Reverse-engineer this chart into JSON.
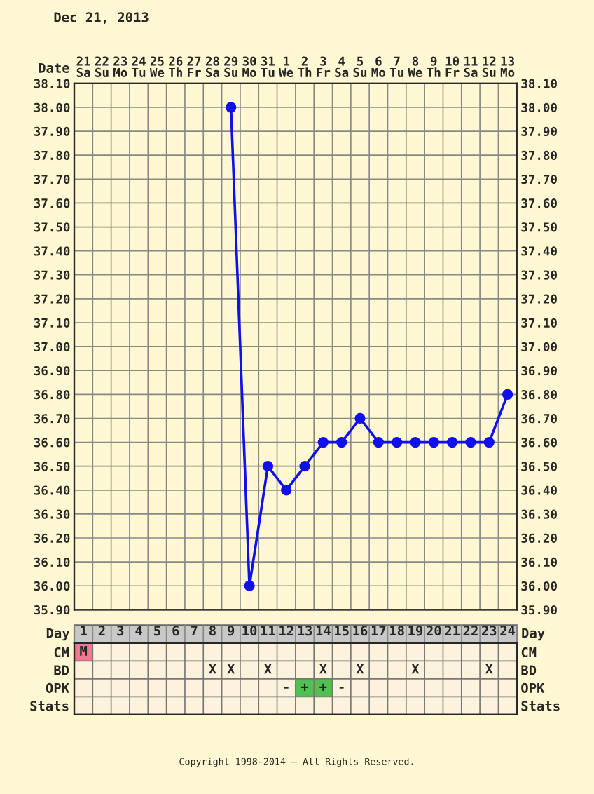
{
  "chart_data": [
    {
      "type": "line",
      "title": "Dec 21, 2013",
      "xlabel": "Date",
      "categories": [
        "21\nSa",
        "22\nSu",
        "23\nMo",
        "24\nTu",
        "25\nWe",
        "26\nTh",
        "27\nFr",
        "28\nSa",
        "29\nSu",
        "30\nMo",
        "31\nTu",
        "1\nWe",
        "2\nTh",
        "3\nFr",
        "4\nSa",
        "5\nSu",
        "6\nMo",
        "7\nTu",
        "8\nWe",
        "9\nTh",
        "10\nFr",
        "11\nSa",
        "12\nSu",
        "13\nMo"
      ],
      "series": [
        {
          "color": "#1010ee",
          "values": [
            null,
            null,
            null,
            null,
            null,
            null,
            null,
            null,
            38.0,
            36.0,
            36.5,
            36.4,
            36.5,
            36.6,
            36.6,
            36.7,
            36.6,
            36.6,
            36.6,
            36.6,
            36.6,
            36.6,
            36.6,
            36.8
          ]
        }
      ],
      "ylim": [
        35.9,
        38.1
      ],
      "yticks": [
        {
          "value": 35.9,
          "label": "35.90"
        },
        {
          "value": 36.0,
          "label": "36.00"
        },
        {
          "value": 36.1,
          "label": "36.10"
        },
        {
          "value": 36.2,
          "label": "36.20"
        },
        {
          "value": 36.3,
          "label": "36.30"
        },
        {
          "value": 36.4,
          "label": "36.40"
        },
        {
          "value": 36.5,
          "label": "36.50"
        },
        {
          "value": 36.6,
          "label": "36.60"
        },
        {
          "value": 36.7,
          "label": "36.70"
        },
        {
          "value": 36.8,
          "label": "36.80"
        },
        {
          "value": 36.9,
          "label": "36.90"
        },
        {
          "value": 37.0,
          "label": "37.00"
        },
        {
          "value": 37.1,
          "label": "37.10"
        },
        {
          "value": 37.2,
          "label": "37.20"
        },
        {
          "value": 37.3,
          "label": "37.30"
        },
        {
          "value": 37.4,
          "label": "37.40"
        },
        {
          "value": 37.5,
          "label": "37.50"
        },
        {
          "value": 37.6,
          "label": "37.60"
        },
        {
          "value": 37.7,
          "label": "37.70"
        },
        {
          "value": 37.8,
          "label": "37.80"
        },
        {
          "value": 37.9,
          "label": "37.90"
        },
        {
          "value": 38.0,
          "label": "38.00"
        },
        {
          "value": 38.1,
          "label": "38.10"
        }
      ],
      "y2lim": [
        35.9,
        38.1
      ],
      "y2ticks": [
        {
          "value": 35.9,
          "label": "35.90"
        },
        {
          "value": 36.0,
          "label": "36.00"
        },
        {
          "value": 36.1,
          "label": "36.10"
        },
        {
          "value": 36.2,
          "label": "36.20"
        },
        {
          "value": 36.3,
          "label": "36.30"
        },
        {
          "value": 36.4,
          "label": "36.40"
        },
        {
          "value": 36.5,
          "label": "36.50"
        },
        {
          "value": 36.6,
          "label": "36.60"
        },
        {
          "value": 36.7,
          "label": "36.70"
        },
        {
          "value": 36.8,
          "label": "36.80"
        },
        {
          "value": 36.9,
          "label": "36.90"
        },
        {
          "value": 37.0,
          "label": "37.00"
        },
        {
          "value": 37.1,
          "label": "37.10"
        },
        {
          "value": 37.2,
          "label": "37.20"
        },
        {
          "value": 37.3,
          "label": "37.30"
        },
        {
          "value": 37.4,
          "label": "37.40"
        },
        {
          "value": 37.5,
          "label": "37.50"
        },
        {
          "value": 37.6,
          "label": "37.60"
        },
        {
          "value": 37.7,
          "label": "37.70"
        },
        {
          "value": 37.8,
          "label": "37.80"
        },
        {
          "value": 37.9,
          "label": "37.90"
        },
        {
          "value": 38.0,
          "label": "38.00"
        },
        {
          "value": 38.1,
          "label": "38.10"
        }
      ],
      "grid": true,
      "marker": "circle",
      "line_style": "solid",
      "legend": false
    },
    {
      "type": "heatmap",
      "xlabel": "Day",
      "categories": [
        "1",
        "2",
        "3",
        "4",
        "5",
        "6",
        "7",
        "8",
        "9",
        "10",
        "11",
        "12",
        "13",
        "14",
        "15",
        "16",
        "17",
        "18",
        "19",
        "20",
        "21",
        "22",
        "23",
        "24"
      ],
      "y_categories": [
        "CM",
        "BD",
        "OPK",
        "Stats"
      ],
      "y2_categories": [
        "CM",
        "BD",
        "OPK",
        "Stats"
      ],
      "cells": [
        [
          null,
          null,
          null,
          null,
          null,
          null,
          null,
          null,
          null,
          null,
          null,
          null,
          null,
          null,
          null,
          null,
          null,
          null,
          null,
          null,
          null,
          null,
          null,
          null
        ],
        [
          null,
          null,
          null,
          null,
          null,
          null,
          null,
          null,
          null,
          null,
          null,
          null,
          null,
          null,
          null,
          null,
          null,
          null,
          null,
          null,
          null,
          null,
          null,
          null
        ],
        [
          null,
          null,
          null,
          null,
          null,
          null,
          null,
          null,
          null,
          null,
          null,
          null,
          null,
          null,
          null,
          null,
          null,
          null,
          null,
          null,
          null,
          null,
          null,
          null
        ],
        [
          null,
          null,
          null,
          null,
          null,
          null,
          null,
          null,
          null,
          null,
          null,
          null,
          null,
          null,
          null,
          null,
          null,
          null,
          null,
          null,
          null,
          null,
          null,
          null
        ]
      ],
      "cell_labels": [
        [
          "M",
          null,
          null,
          null,
          null,
          null,
          null,
          null,
          null,
          null,
          null,
          null,
          null,
          null,
          null,
          null,
          null,
          null,
          null,
          null,
          null,
          null,
          null,
          null
        ],
        [
          null,
          null,
          null,
          null,
          null,
          null,
          null,
          "X",
          "X",
          null,
          "X",
          null,
          null,
          "X",
          null,
          "X",
          null,
          null,
          "X",
          null,
          null,
          null,
          "X",
          null
        ],
        [
          null,
          null,
          null,
          null,
          null,
          null,
          null,
          null,
          null,
          null,
          null,
          "-",
          "+",
          "+",
          "-",
          null,
          null,
          null,
          null,
          null,
          null,
          null,
          null,
          null
        ],
        [
          null,
          null,
          null,
          null,
          null,
          null,
          null,
          null,
          null,
          null,
          null,
          null,
          null,
          null,
          null,
          null,
          null,
          null,
          null,
          null,
          null,
          null,
          null,
          null
        ]
      ],
      "colors": [
        [
          "#f07890",
          null,
          null,
          null,
          null,
          null,
          null,
          null,
          null,
          null,
          null,
          null,
          null,
          null,
          null,
          null,
          null,
          null,
          null,
          null,
          null,
          null,
          null,
          null
        ],
        [
          null,
          null,
          null,
          null,
          null,
          null,
          null,
          null,
          null,
          null,
          null,
          null,
          null,
          null,
          null,
          null,
          null,
          null,
          null,
          null,
          null,
          null,
          null,
          null
        ],
        [
          null,
          null,
          null,
          null,
          null,
          null,
          null,
          null,
          null,
          null,
          null,
          null,
          "#50c050",
          "#50c050",
          null,
          null,
          null,
          null,
          null,
          null,
          null,
          null,
          null,
          null
        ],
        [
          null,
          null,
          null,
          null,
          null,
          null,
          null,
          null,
          null,
          null,
          null,
          null,
          null,
          null,
          null,
          null,
          null,
          null,
          null,
          null,
          null,
          null,
          null,
          null
        ]
      ],
      "annotations": [
        "Copyright 1998-2014 – All Rights Reserved."
      ]
    }
  ]
}
